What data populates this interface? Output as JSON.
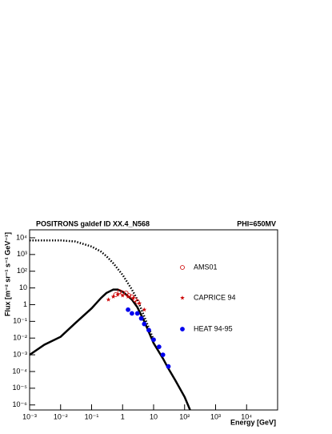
{
  "chart_data": {
    "type": "line",
    "title": "POSITRONS galdef ID XX.4_N568",
    "subtitle": "PHI=650MV",
    "x_label": "Energy [GeV]",
    "y_label": "Flux [m⁻² sr⁻¹ s⁻¹ GeV⁻¹]",
    "log_x": true,
    "log_y": true,
    "legend": "right",
    "xlim": [
      0.001,
      100000
    ],
    "ylim": [
      5e-07,
      30000
    ],
    "xticks": [
      {
        "value": 0.001,
        "label": "10⁻³"
      },
      {
        "value": 0.01,
        "label": "10⁻²"
      },
      {
        "value": 0.1,
        "label": "10⁻¹"
      },
      1,
      10,
      {
        "value": 100,
        "label": "10²"
      },
      {
        "value": 1000,
        "label": "10³"
      },
      {
        "value": 10000,
        "label": "10⁴"
      }
    ],
    "yticks": [
      {
        "value": 1e-06,
        "label": "10⁻⁶"
      },
      {
        "value": 1e-05,
        "label": "10⁻⁵"
      },
      {
        "value": 0.0001,
        "label": "10⁻⁴"
      },
      {
        "value": 0.001,
        "label": "10⁻³"
      },
      {
        "value": 0.01,
        "label": "10⁻²"
      },
      {
        "value": 0.1,
        "label": "10⁻¹"
      },
      1,
      10,
      {
        "value": 100,
        "label": "10²"
      },
      {
        "value": 1000,
        "label": "10³"
      },
      {
        "value": 10000,
        "label": "10⁴"
      }
    ],
    "lines": [
      {
        "style": "dotted",
        "color": "#000000",
        "x": [
          0.001,
          0.01,
          0.03,
          0.1,
          0.2,
          0.3,
          0.5,
          1,
          2,
          3,
          5,
          7,
          10
        ],
        "values": [
          7000,
          7000,
          6000,
          3000,
          1500,
          800,
          300,
          60,
          8,
          2,
          0.2,
          0.04,
          0.008
        ]
      },
      {
        "style": "solid",
        "color": "#000000",
        "x": [
          0.001,
          0.003,
          0.01,
          0.03,
          0.1,
          0.2,
          0.3,
          0.5,
          0.7,
          1,
          2,
          3,
          5,
          10,
          20,
          30,
          50,
          100,
          150
        ],
        "values": [
          0.001,
          0.004,
          0.012,
          0.08,
          0.6,
          2.5,
          5,
          8,
          8,
          6,
          2,
          0.7,
          0.1,
          0.005,
          0.0006,
          0.00015,
          3e-05,
          3e-06,
          5e-07
        ]
      }
    ],
    "series": [
      {
        "name": "AMS01",
        "marker": "open-circle",
        "color": "#cc0000",
        "x": [
          0.6,
          0.8,
          1.0,
          1.3,
          1.6,
          2.0,
          2.5,
          3.0
        ],
        "values": [
          4,
          6,
          5,
          5,
          3.5,
          3,
          2,
          1.5
        ]
      },
      {
        "name": "CAPRICE 94",
        "marker": "star",
        "color": "#cc0000",
        "x": [
          0.35,
          0.5,
          0.7,
          1.0,
          1.5,
          2.2,
          3.5,
          5
        ],
        "values": [
          2,
          3,
          4,
          3.5,
          3,
          2.5,
          1.2,
          0.5
        ]
      },
      {
        "name": "HEAT 94-95",
        "marker": "filled-circle",
        "color": "#0000ee",
        "x": [
          1.5,
          2,
          3,
          4,
          5,
          7,
          10,
          15,
          20,
          30
        ],
        "values": [
          0.5,
          0.3,
          0.3,
          0.15,
          0.07,
          0.03,
          0.008,
          0.003,
          0.001,
          0.0002
        ]
      }
    ]
  }
}
